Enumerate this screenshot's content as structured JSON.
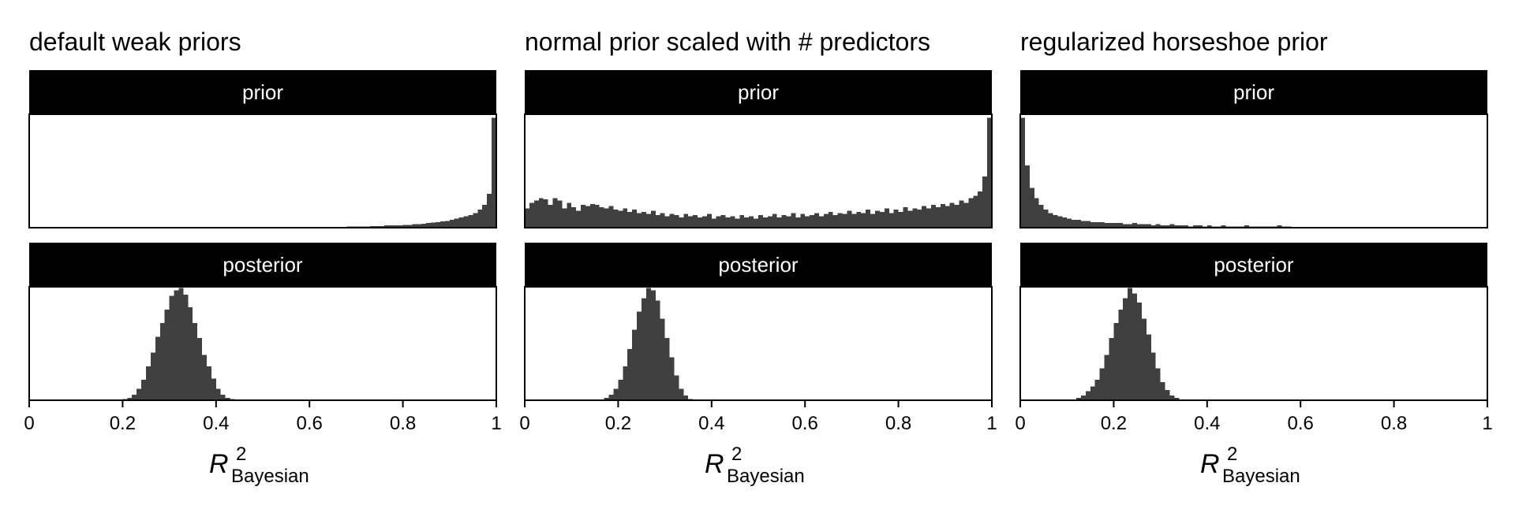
{
  "chart_data": {
    "type": "bar",
    "xlabel": {
      "main": "R",
      "sub": "Bayesian",
      "sup": "2"
    },
    "xlim": [
      0,
      1
    ],
    "xticks": [
      0,
      0.2,
      0.4,
      0.6,
      0.8,
      1
    ],
    "xtick_labels": [
      "0",
      "0.2",
      "0.4",
      "0.6",
      "0.8",
      "1"
    ],
    "bar_color": "#404040",
    "strip_color": "#000000",
    "rows": [
      "prior",
      "posterior"
    ],
    "panels": [
      {
        "title": "default weak priors",
        "prior": {
          "bin_width": 0.01,
          "x_start": 0,
          "values": [
            0,
            0,
            0,
            0,
            0,
            0,
            0,
            0,
            0,
            0,
            0,
            0,
            0,
            0,
            0,
            0,
            0,
            0,
            0,
            0,
            0,
            0,
            0,
            0,
            0,
            0,
            0,
            0,
            0,
            0,
            0,
            0,
            0,
            0,
            0,
            0,
            0,
            0,
            0,
            0,
            0,
            0,
            0,
            0,
            0,
            0,
            0,
            0,
            0,
            0,
            0,
            0,
            0,
            0,
            0,
            0,
            0,
            0,
            0,
            0,
            0,
            0,
            0.005,
            0.005,
            0.005,
            0.005,
            0.005,
            0.005,
            0.01,
            0.01,
            0.01,
            0.01,
            0.01,
            0.015,
            0.015,
            0.015,
            0.02,
            0.02,
            0.02,
            0.02,
            0.025,
            0.025,
            0.03,
            0.03,
            0.035,
            0.04,
            0.045,
            0.05,
            0.055,
            0.06,
            0.07,
            0.08,
            0.09,
            0.1,
            0.11,
            0.13,
            0.16,
            0.2,
            0.3,
            0.97
          ]
        },
        "posterior": {
          "bin_width": 0.01,
          "x_start": 0.2,
          "values": [
            0.01,
            0.02,
            0.05,
            0.1,
            0.18,
            0.3,
            0.42,
            0.56,
            0.68,
            0.8,
            0.92,
            0.97,
            0.99,
            0.93,
            0.82,
            0.68,
            0.55,
            0.4,
            0.3,
            0.19,
            0.1,
            0.05,
            0.02,
            0.01
          ]
        }
      },
      {
        "title": "normal prior scaled with # predictors",
        "prior": {
          "bin_width": 0.01,
          "x_start": 0,
          "values": [
            0.17,
            0.22,
            0.24,
            0.26,
            0.25,
            0.2,
            0.26,
            0.24,
            0.17,
            0.22,
            0.18,
            0.15,
            0.2,
            0.19,
            0.21,
            0.2,
            0.18,
            0.17,
            0.19,
            0.16,
            0.15,
            0.17,
            0.14,
            0.16,
            0.13,
            0.14,
            0.12,
            0.15,
            0.11,
            0.13,
            0.1,
            0.12,
            0.11,
            0.09,
            0.12,
            0.1,
            0.11,
            0.09,
            0.1,
            0.12,
            0.08,
            0.1,
            0.11,
            0.09,
            0.1,
            0.08,
            0.11,
            0.09,
            0.1,
            0.08,
            0.11,
            0.09,
            0.1,
            0.12,
            0.09,
            0.11,
            0.1,
            0.13,
            0.09,
            0.12,
            0.1,
            0.11,
            0.13,
            0.1,
            0.12,
            0.14,
            0.11,
            0.13,
            0.12,
            0.15,
            0.12,
            0.14,
            0.13,
            0.16,
            0.12,
            0.15,
            0.14,
            0.17,
            0.13,
            0.16,
            0.14,
            0.18,
            0.15,
            0.17,
            0.16,
            0.19,
            0.17,
            0.2,
            0.18,
            0.21,
            0.19,
            0.22,
            0.2,
            0.24,
            0.22,
            0.26,
            0.28,
            0.32,
            0.45,
            0.97
          ]
        },
        "posterior": {
          "bin_width": 0.01,
          "x_start": 0.17,
          "values": [
            0.02,
            0.05,
            0.1,
            0.18,
            0.3,
            0.45,
            0.62,
            0.78,
            0.9,
            0.99,
            0.97,
            0.88,
            0.72,
            0.55,
            0.38,
            0.22,
            0.1,
            0.04,
            0.01
          ]
        }
      },
      {
        "title": "regularized horseshoe prior",
        "prior": {
          "bin_width": 0.01,
          "x_start": 0,
          "values": [
            0.97,
            0.55,
            0.35,
            0.26,
            0.2,
            0.16,
            0.13,
            0.11,
            0.1,
            0.09,
            0.08,
            0.07,
            0.07,
            0.06,
            0.06,
            0.05,
            0.05,
            0.05,
            0.04,
            0.04,
            0.04,
            0.04,
            0.03,
            0.03,
            0.04,
            0.03,
            0.03,
            0.03,
            0.02,
            0.03,
            0.02,
            0.02,
            0.03,
            0.02,
            0.02,
            0.02,
            0.01,
            0.02,
            0.02,
            0.01,
            0.02,
            0.01,
            0.01,
            0.02,
            0.01,
            0.01,
            0.01,
            0.01,
            0.02,
            0.01,
            0.01,
            0.01,
            0.01,
            0.01,
            0.01,
            0.02,
            0.01,
            0.01,
            0.005,
            0.005,
            0.005,
            0.005,
            0.005,
            0.005,
            0.005,
            0.005,
            0.005,
            0.005,
            0.005,
            0.005,
            0.005,
            0.005,
            0.005,
            0.005,
            0.005,
            0.005,
            0.005,
            0.005,
            0.005,
            0.005,
            0.005,
            0.005,
            0.005,
            0.005,
            0.005,
            0.005,
            0.005,
            0.005,
            0.005,
            0.005,
            0.005,
            0.005,
            0.005,
            0.005,
            0.005,
            0.005,
            0.005,
            0.005,
            0.005,
            0.005
          ]
        },
        "posterior": {
          "bin_width": 0.01,
          "x_start": 0.12,
          "values": [
            0.02,
            0.04,
            0.08,
            0.12,
            0.18,
            0.28,
            0.4,
            0.55,
            0.68,
            0.8,
            0.9,
            0.99,
            0.94,
            0.86,
            0.72,
            0.58,
            0.42,
            0.28,
            0.16,
            0.09,
            0.04,
            0.02
          ]
        }
      }
    ]
  }
}
